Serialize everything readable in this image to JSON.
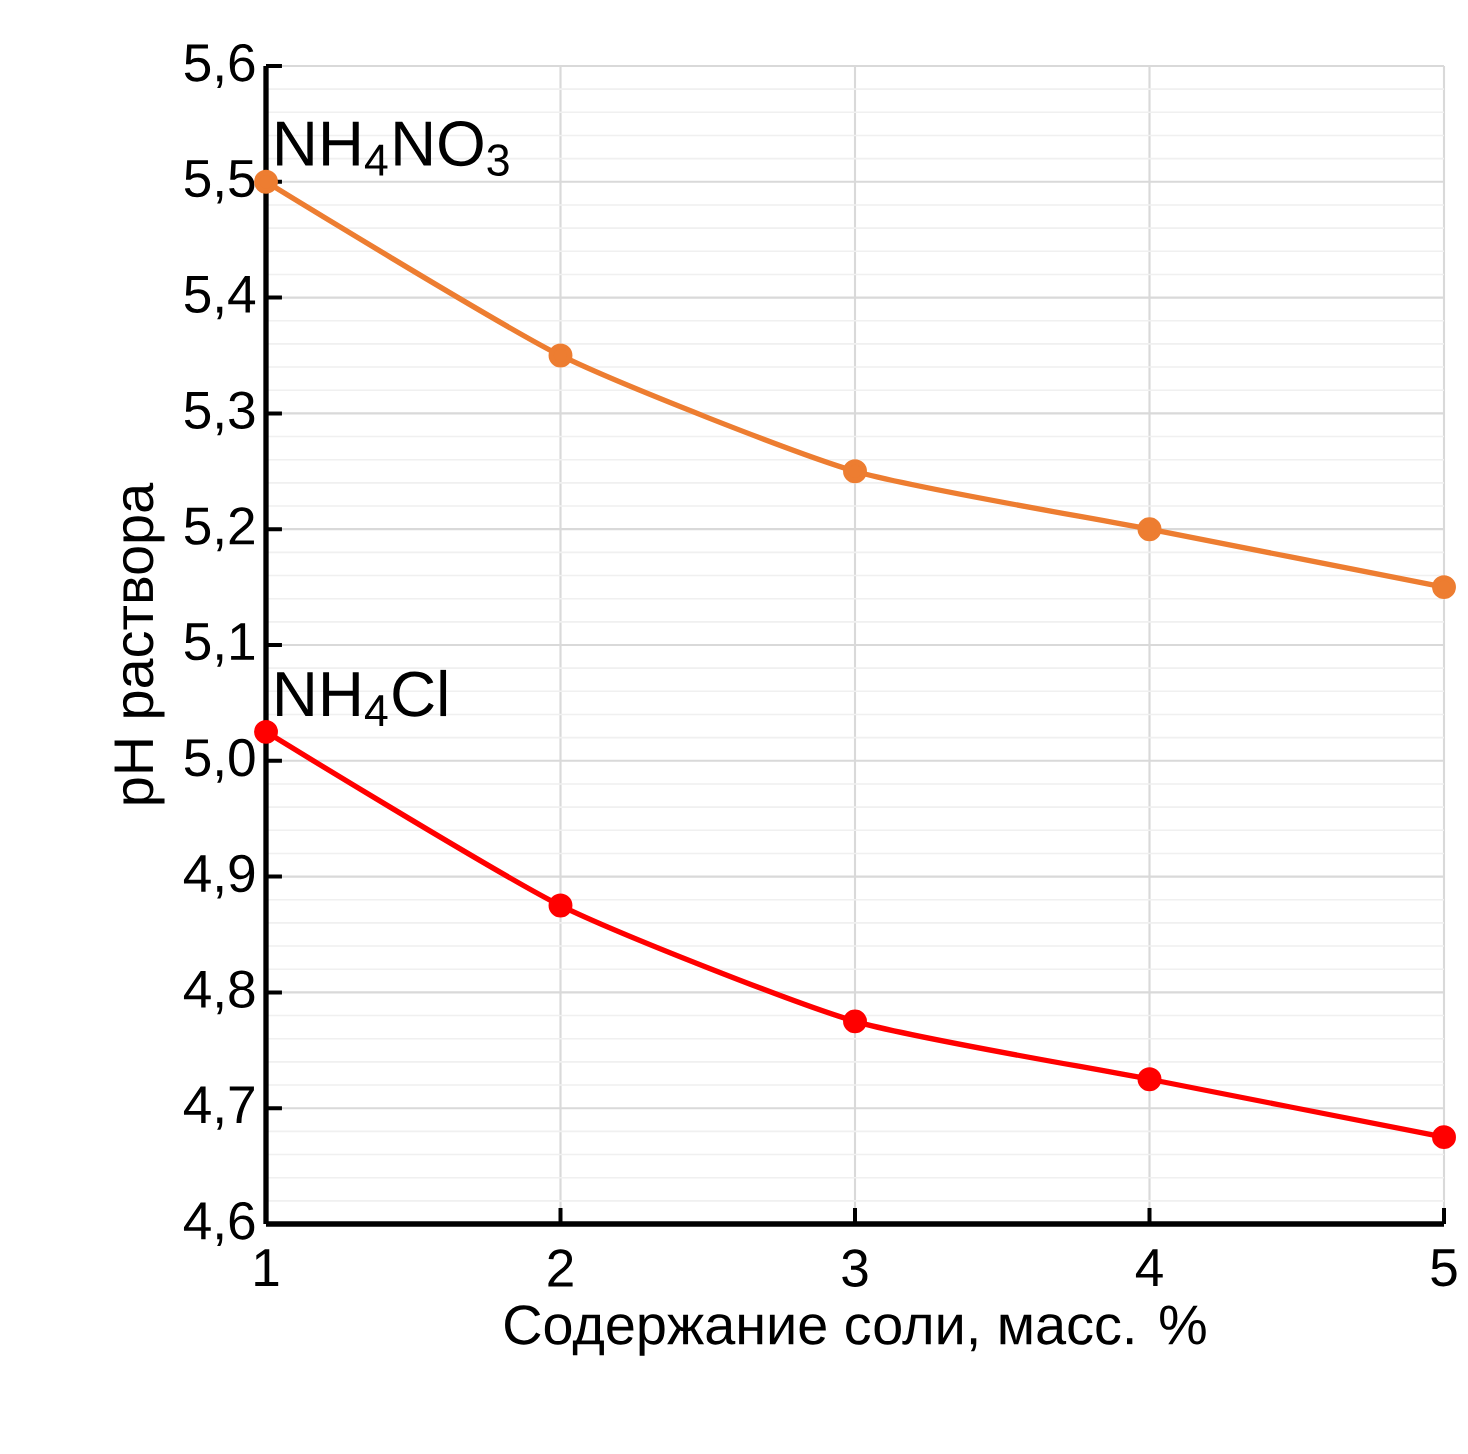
{
  "chart_data": {
    "type": "line",
    "xlabel": "Содержание соли, масс. %",
    "ylabel": "pH раствора",
    "x": [
      1,
      2,
      3,
      4,
      5
    ],
    "xlim": [
      1,
      5
    ],
    "xticks": [
      1,
      2,
      3,
      4,
      5
    ],
    "ylim": [
      4.6,
      5.6
    ],
    "yticks": [
      {
        "value": 4.6,
        "label": "4,6"
      },
      {
        "value": 4.7,
        "label": "4,7"
      },
      {
        "value": 4.8,
        "label": "4,8"
      },
      {
        "value": 4.9,
        "label": "4,9"
      },
      {
        "value": 5.0,
        "label": "5,0"
      },
      {
        "value": 5.1,
        "label": "5,1"
      },
      {
        "value": 5.2,
        "label": "5,2"
      },
      {
        "value": 5.3,
        "label": "5,3"
      },
      {
        "value": 5.4,
        "label": "5,4"
      },
      {
        "value": 5.5,
        "label": "5,5"
      },
      {
        "value": 5.6,
        "label": "5,6"
      }
    ],
    "grid": true,
    "marker": "circle",
    "line_style": "solid",
    "series": [
      {
        "name": "NH$_{4}$NO$_{3}$",
        "color": "#ed7d31",
        "values": [
          5.5,
          5.35,
          5.25,
          5.2,
          5.15
        ]
      },
      {
        "name": "NH$_{4}$Cl",
        "color": "#ff0000",
        "values": [
          5.025,
          4.875,
          4.775,
          4.725,
          4.675
        ]
      }
    ]
  }
}
